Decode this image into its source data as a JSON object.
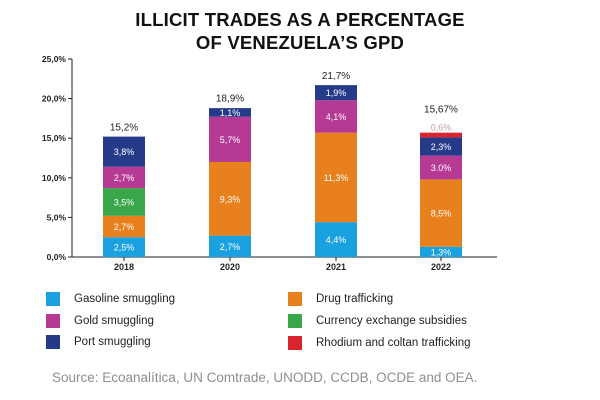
{
  "chart_data": {
    "type": "bar",
    "stacked": true,
    "title_lines": [
      "ILLICIT TRADES AS A PERCENTAGE",
      "OF VENEZUELA’S GPD"
    ],
    "categories": [
      "2018",
      "2020",
      "2021",
      "2022"
    ],
    "ylim": [
      0,
      25
    ],
    "yticks": [
      0,
      5,
      10,
      15,
      20,
      25
    ],
    "ytick_labels": [
      "0,0%",
      "5,0%",
      "10,0%",
      "15,0%",
      "20,0%",
      "25,0%"
    ],
    "grid": false,
    "legend_position": "bottom",
    "series": [
      {
        "name": "Gasoline smuggling",
        "color": "#1aa1df",
        "values": [
          2.5,
          2.7,
          4.4,
          1.3
        ],
        "labels": [
          "2,5%",
          "2,7%",
          "4,4%",
          "1,3%"
        ]
      },
      {
        "name": "Drug trafficking",
        "color": "#e8801d",
        "values": [
          2.7,
          9.3,
          11.3,
          8.5
        ],
        "labels": [
          "2,7%",
          "9,3%",
          "11,3%",
          "8,5%"
        ]
      },
      {
        "name": "Currency exchange subsidies",
        "color": "#3aa64a",
        "values": [
          3.5,
          0,
          0,
          0
        ],
        "labels": [
          "3,5%",
          "",
          "",
          ""
        ]
      },
      {
        "name": "Gold smuggling",
        "color": "#b63a94",
        "values": [
          2.7,
          5.7,
          4.1,
          3.0
        ],
        "labels": [
          "2,7%",
          "5,7%",
          "4,1%",
          "3.0%"
        ]
      },
      {
        "name": "Port smuggling",
        "color": "#263a8a",
        "values": [
          3.8,
          1.1,
          1.9,
          2.3
        ],
        "labels": [
          "3,8%",
          "1,1%",
          "1,9%",
          "2,3%"
        ]
      },
      {
        "name": "Rhodium and coltan trafficking",
        "color": "#d9232d",
        "values": [
          0,
          0,
          0,
          0.6
        ],
        "labels": [
          "",
          "",
          "",
          "0,6%"
        ]
      }
    ],
    "totals": [
      15.2,
      18.9,
      21.7,
      15.67
    ],
    "total_labels": [
      "15,2%",
      "18,9%",
      "21,7%",
      "15,67%"
    ]
  },
  "legend": [
    {
      "label": "Gasoline smuggling",
      "color": "#1aa1df"
    },
    {
      "label": "Drug trafficking",
      "color": "#e8801d"
    },
    {
      "label": "Gold smuggling",
      "color": "#b63a94"
    },
    {
      "label": "Currency exchange subsidies",
      "color": "#3aa64a"
    },
    {
      "label": "Port smuggling",
      "color": "#263a8a"
    },
    {
      "label": "Rhodium and coltan trafficking",
      "color": "#d9232d"
    }
  ],
  "source": "Source: Ecoanalítica, UN Comtrade, UNODD, CCDB, OCDE and OEA."
}
